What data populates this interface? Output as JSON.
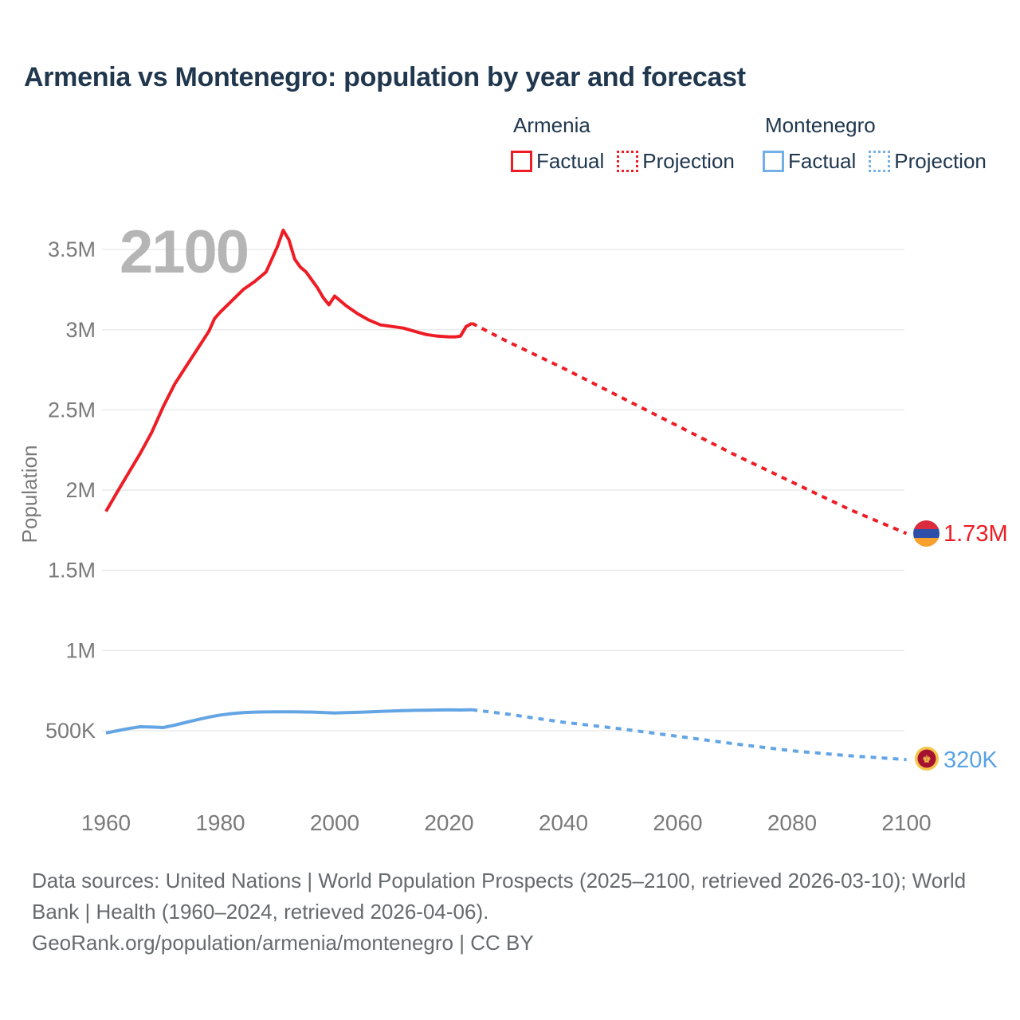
{
  "page": {
    "title": "Armenia vs Montenegro: population by year and forecast",
    "watermark": "2100"
  },
  "legend": {
    "groups": [
      {
        "title": "Armenia",
        "items": [
          {
            "label": "Factual",
            "style": "solid",
            "color": "#ee1c25"
          },
          {
            "label": "Projection",
            "style": "dotted",
            "color": "#ee1c25"
          }
        ]
      },
      {
        "title": "Montenegro",
        "items": [
          {
            "label": "Factual",
            "style": "solid",
            "color": "#74b0e8"
          },
          {
            "label": "Projection",
            "style": "dotted",
            "color": "#74b0e8"
          }
        ]
      }
    ]
  },
  "end_labels": {
    "armenia": "1.73M",
    "montenegro": "320K"
  },
  "footer": {
    "line1": "Data sources: United Nations | World Population Prospects (2025–2100, retrieved 2026-03-10); World Bank | Health (1960–2024, retrieved 2026-04-06).",
    "line2": "GeoRank.org/population/armenia/montenegro | CC BY"
  },
  "colors": {
    "armenia_line": "#ee1c25",
    "montenegro_line": "#63a5e4",
    "title_text": "#20374e",
    "axis_text": "#7a7a7a",
    "gridline": "#e8e8e8",
    "watermark": "#b5b5b5",
    "footer_text": "#666a6d"
  },
  "chart_data": {
    "type": "line",
    "title": "Armenia vs Montenegro: population by year and forecast",
    "xlabel": "",
    "ylabel": "Population",
    "unit": "millions of people",
    "x_ticks": [
      1960,
      1980,
      2000,
      2020,
      2040,
      2060,
      2080,
      2100
    ],
    "y_ticks": [
      {
        "label": "3.5M",
        "value": 3.5
      },
      {
        "label": "3M",
        "value": 3.0
      },
      {
        "label": "2.5M",
        "value": 2.5
      },
      {
        "label": "2M",
        "value": 2.0
      },
      {
        "label": "1.5M",
        "value": 1.5
      },
      {
        "label": "1M",
        "value": 1.0
      },
      {
        "label": "500K",
        "value": 0.5
      }
    ],
    "xlim": [
      1958,
      2113
    ],
    "ylim": [
      0.13,
      3.86
    ],
    "grid": "horizontal-only",
    "legend_position": "top-right",
    "series": [
      {
        "name": "Armenia Factual",
        "style": "solid",
        "color": "#ee1c25",
        "points": [
          [
            1960,
            1.867
          ],
          [
            1962,
            1.99
          ],
          [
            1964,
            2.11
          ],
          [
            1966,
            2.23
          ],
          [
            1968,
            2.36
          ],
          [
            1970,
            2.52
          ],
          [
            1972,
            2.66
          ],
          [
            1974,
            2.77
          ],
          [
            1976,
            2.88
          ],
          [
            1978,
            2.99
          ],
          [
            1979,
            3.07
          ],
          [
            1980,
            3.11
          ],
          [
            1982,
            3.18
          ],
          [
            1984,
            3.25
          ],
          [
            1986,
            3.3
          ],
          [
            1988,
            3.36
          ],
          [
            1989,
            3.44
          ],
          [
            1990,
            3.52
          ],
          [
            1991,
            3.62
          ],
          [
            1992,
            3.56
          ],
          [
            1993,
            3.44
          ],
          [
            1994,
            3.39
          ],
          [
            1995,
            3.36
          ],
          [
            1996,
            3.31
          ],
          [
            1997,
            3.26
          ],
          [
            1998,
            3.2
          ],
          [
            1999,
            3.155
          ],
          [
            2000,
            3.21
          ],
          [
            2002,
            3.15
          ],
          [
            2004,
            3.1
          ],
          [
            2006,
            3.06
          ],
          [
            2008,
            3.03
          ],
          [
            2010,
            3.02
          ],
          [
            2012,
            3.01
          ],
          [
            2013,
            3.0
          ],
          [
            2014,
            2.99
          ],
          [
            2016,
            2.97
          ],
          [
            2018,
            2.96
          ],
          [
            2020,
            2.955
          ],
          [
            2021,
            2.955
          ],
          [
            2022,
            2.96
          ],
          [
            2023,
            3.02
          ],
          [
            2024,
            3.04
          ]
        ]
      },
      {
        "name": "Armenia Projection",
        "style": "dotted",
        "color": "#ee1c25",
        "points": [
          [
            2024,
            3.04
          ],
          [
            2030,
            2.93
          ],
          [
            2040,
            2.76
          ],
          [
            2050,
            2.58
          ],
          [
            2060,
            2.4
          ],
          [
            2070,
            2.22
          ],
          [
            2080,
            2.05
          ],
          [
            2090,
            1.88
          ],
          [
            2100,
            1.73
          ]
        ]
      },
      {
        "name": "Montenegro Factual",
        "style": "solid",
        "color": "#63a5e4",
        "points": [
          [
            1960,
            0.486
          ],
          [
            1962,
            0.5
          ],
          [
            1964,
            0.514
          ],
          [
            1966,
            0.525
          ],
          [
            1968,
            0.523
          ],
          [
            1970,
            0.52
          ],
          [
            1972,
            0.535
          ],
          [
            1974,
            0.552
          ],
          [
            1976,
            0.569
          ],
          [
            1978,
            0.585
          ],
          [
            1980,
            0.598
          ],
          [
            1982,
            0.607
          ],
          [
            1984,
            0.613
          ],
          [
            1986,
            0.616
          ],
          [
            1988,
            0.617
          ],
          [
            1990,
            0.618
          ],
          [
            1992,
            0.618
          ],
          [
            1994,
            0.617
          ],
          [
            1996,
            0.616
          ],
          [
            1998,
            0.614
          ],
          [
            2000,
            0.611
          ],
          [
            2002,
            0.613
          ],
          [
            2004,
            0.615
          ],
          [
            2006,
            0.617
          ],
          [
            2008,
            0.62
          ],
          [
            2010,
            0.623
          ],
          [
            2012,
            0.625
          ],
          [
            2014,
            0.627
          ],
          [
            2016,
            0.628
          ],
          [
            2018,
            0.629
          ],
          [
            2020,
            0.63
          ],
          [
            2022,
            0.629
          ],
          [
            2024,
            0.631
          ]
        ]
      },
      {
        "name": "Montenegro Projection",
        "style": "dotted",
        "color": "#63a5e4",
        "points": [
          [
            2024,
            0.631
          ],
          [
            2030,
            0.605
          ],
          [
            2040,
            0.553
          ],
          [
            2050,
            0.512
          ],
          [
            2060,
            0.465
          ],
          [
            2070,
            0.418
          ],
          [
            2080,
            0.375
          ],
          [
            2090,
            0.344
          ],
          [
            2100,
            0.32
          ]
        ]
      }
    ],
    "end_values": {
      "Armenia 2100": "1.73M",
      "Montenegro 2100": "320K"
    }
  }
}
